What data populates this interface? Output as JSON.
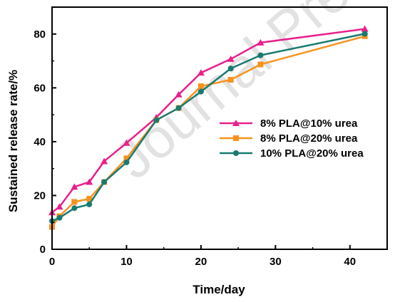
{
  "watermark": "Journal Pre-proof",
  "chart_data": {
    "type": "line",
    "xlabel": "Time/day",
    "ylabel": "Sustained release rate/%",
    "xlim": [
      0,
      45
    ],
    "ylim": [
      0,
      90
    ],
    "xticks": [
      0,
      10,
      20,
      30,
      40
    ],
    "yticks": [
      0,
      20,
      40,
      60,
      80
    ],
    "legend_position": "center-right",
    "x": [
      0,
      1,
      3,
      5,
      7,
      10,
      14,
      17,
      20,
      24,
      28,
      42
    ],
    "series": [
      {
        "name": "8% PLA@10% urea",
        "color": "#e8208c",
        "marker": "triangle",
        "values": [
          13.7,
          15.8,
          23.2,
          25.0,
          32.7,
          39.5,
          49.0,
          57.5,
          65.6,
          70.7,
          76.8,
          81.9
        ]
      },
      {
        "name": "8% PLA@20% urea",
        "color": "#f7931e",
        "marker": "square",
        "values": [
          8.3,
          12.3,
          17.6,
          18.8,
          25.0,
          33.8,
          48.0,
          52.5,
          60.6,
          63.0,
          68.7,
          79.2
        ]
      },
      {
        "name": "10% PLA@20% urea",
        "color": "#1a7a70",
        "marker": "circle",
        "values": [
          10.5,
          11.7,
          15.3,
          16.7,
          25.0,
          32.3,
          48.0,
          52.5,
          58.6,
          67.2,
          72.1,
          80.1
        ]
      }
    ]
  }
}
